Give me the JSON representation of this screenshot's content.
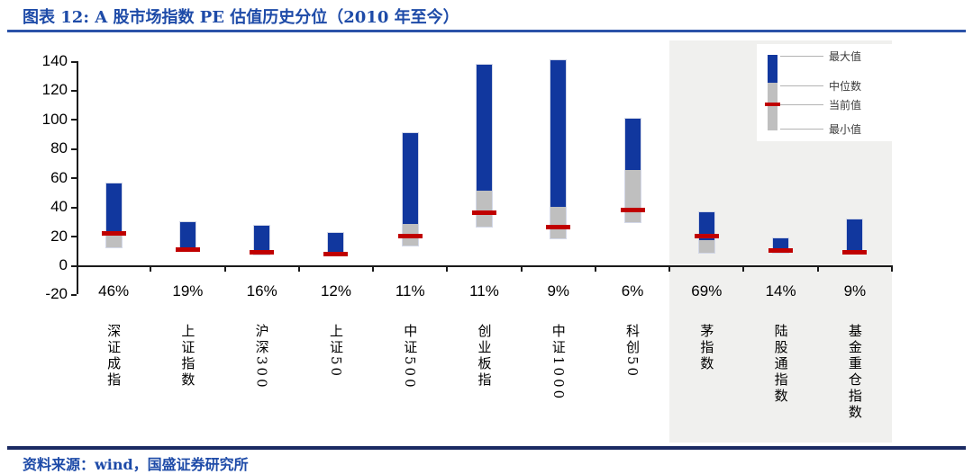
{
  "header": {
    "title": "图表 12: A 股市场指数 PE 估值历史分位（2010 年至今）"
  },
  "footer": {
    "source": "资料来源：wind，国盛证券研究所"
  },
  "chart_data": {
    "type": "bar",
    "subtype": "floating-range-bars-with-current-marker",
    "title": "A 股市场指数 PE 估值历史分位（2010 年至今）",
    "xlabel": "",
    "ylabel": "",
    "ylim": [
      -20,
      140
    ],
    "yticks": [
      140,
      120,
      100,
      80,
      60,
      40,
      20,
      0,
      -20
    ],
    "grid": false,
    "legend": {
      "position": "top-right",
      "items": [
        "最大值",
        "中位数",
        "当前值",
        "最小值"
      ]
    },
    "categories": [
      "深证成指",
      "上证指数",
      "沪深300",
      "上证50",
      "中证500",
      "创业板指",
      "中证1000",
      "科创50",
      "茅指数",
      "陆股通指数",
      "基金重仓指数"
    ],
    "percentile_labels": [
      "46%",
      "19%",
      "16%",
      "12%",
      "11%",
      "11%",
      "9%",
      "6%",
      "69%",
      "14%",
      "9%"
    ],
    "series": [
      {
        "name": "最大值",
        "values": [
          57,
          30,
          28,
          23,
          91,
          138,
          141,
          101,
          37,
          19,
          32
        ]
      },
      {
        "name": "中位数",
        "values": [
          23,
          12,
          11,
          10,
          29,
          52,
          41,
          66,
          18,
          12,
          11
        ]
      },
      {
        "name": "当前值",
        "values": [
          22,
          11,
          9,
          8,
          20,
          36,
          26,
          38,
          20,
          10,
          9
        ]
      },
      {
        "name": "最小值",
        "values": [
          12,
          9,
          7,
          6,
          13,
          26,
          18,
          29,
          8,
          8,
          8
        ]
      }
    ],
    "highlight_panel": {
      "from_index": 8,
      "to_index": 10,
      "categories": [
        "茅指数",
        "陆股通指数",
        "基金重仓指数"
      ]
    }
  },
  "colors": {
    "bar_blue": "#11379E",
    "bar_gray": "#BFBFBF",
    "current_red": "#C00000",
    "panel_gray": "#F0F0EE",
    "title_blue": "#1E4BA8",
    "rule_top": "#2B52A8",
    "rule_bottom": "#1B2A63",
    "axis": "#1A1A1A",
    "leader_line": "#B3B3B3"
  }
}
